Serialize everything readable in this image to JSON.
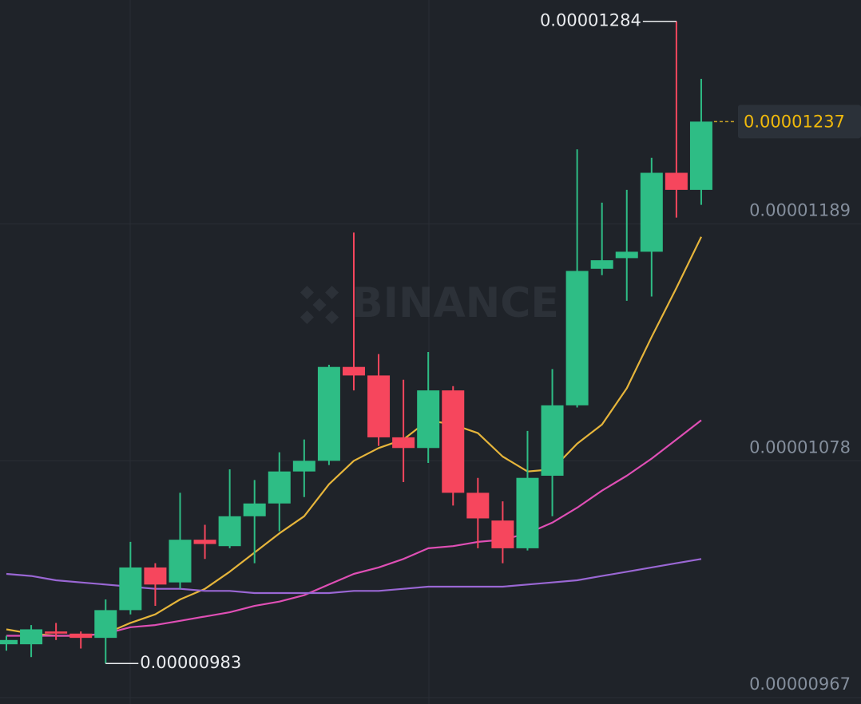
{
  "chart_data": {
    "type": "candlestick",
    "watermark": "BINANCE",
    "ylim": [
      9.64e-06,
      1.294e-05
    ],
    "yticks": [
      9.67e-06,
      1.078e-05,
      1.189e-05
    ],
    "grid": true,
    "up_color": "#2ebd85",
    "down_color": "#f6465d",
    "open": [
      9.92e-06,
      9.92e-06,
      9.98e-06,
      9.97e-06,
      9.95e-06,
      1.008e-05,
      1.028e-05,
      1.021e-05,
      1.041e-05,
      1.038e-05,
      1.052e-05,
      1.058e-05,
      1.073e-05,
      1.078e-05,
      1.122e-05,
      1.118e-05,
      1.089e-05,
      1.084e-05,
      1.111e-05,
      1.063e-05,
      1.05e-05,
      1.037e-05,
      1.071e-05,
      1.104e-05,
      1.168e-05,
      1.173e-05,
      1.176e-05,
      1.213e-05,
      1.205e-05
    ],
    "high": [
      9.96e-06,
      1.001e-05,
      1.002e-05,
      9.98e-06,
      1.013e-05,
      1.04e-05,
      1.03e-05,
      1.063e-05,
      1.048e-05,
      1.074e-05,
      1.069e-05,
      1.082e-05,
      1.088e-05,
      1.123e-05,
      1.185e-05,
      1.128e-05,
      1.116e-05,
      1.129e-05,
      1.113e-05,
      1.07e-05,
      1.059e-05,
      1.092e-05,
      1.121e-05,
      1.224e-05,
      1.199e-05,
      1.205e-05,
      1.22e-05,
      1.284e-05,
      1.257e-05
    ],
    "low": [
      9.89e-06,
      9.86e-06,
      9.94e-06,
      9.9e-06,
      9.83e-06,
      1.006e-05,
      1.01e-05,
      1.018e-05,
      1.032e-05,
      1.037e-05,
      1.03e-05,
      1.045e-05,
      1.061e-05,
      1.076e-05,
      1.111e-05,
      1.085e-05,
      1.068e-05,
      1.077e-05,
      1.057e-05,
      1.037e-05,
      1.03e-05,
      1.036e-05,
      1.052e-05,
      1.103e-05,
      1.165e-05,
      1.153e-05,
      1.155e-05,
      1.192e-05,
      1.198e-05
    ],
    "close": [
      9.94e-06,
      9.99e-06,
      9.97e-06,
      9.95e-06,
      1.008e-05,
      1.028e-05,
      1.02e-05,
      1.041e-05,
      1.039e-05,
      1.052e-05,
      1.058e-05,
      1.073e-05,
      1.078e-05,
      1.122e-05,
      1.118e-05,
      1.089e-05,
      1.084e-05,
      1.111e-05,
      1.063e-05,
      1.051e-05,
      1.037e-05,
      1.07e-05,
      1.104e-05,
      1.167e-05,
      1.172e-05,
      1.176e-05,
      1.213e-05,
      1.205e-05,
      1.237e-05
    ],
    "lines": [
      {
        "color": "#e6b53b",
        "values": [
          9.99e-06,
          9.97e-06,
          9.96e-06,
          9.96e-06,
          9.97e-06,
          1.002e-05,
          1.006e-05,
          1.013e-05,
          1.018e-05,
          1.026e-05,
          1.035e-05,
          1.044e-05,
          1.052e-05,
          1.067e-05,
          1.078e-05,
          1.084e-05,
          1.088e-05,
          1.097e-05,
          1.095e-05,
          1.091e-05,
          1.08e-05,
          1.073e-05,
          1.074e-05,
          1.086e-05,
          1.095e-05,
          1.112e-05,
          1.136e-05,
          1.159e-05,
          1.183e-05
        ]
      },
      {
        "color": "#df4fb5",
        "values": [
          9.96e-06,
          9.96e-06,
          9.96e-06,
          9.96e-06,
          9.97e-06,
          1e-05,
          1.001e-05,
          1.003e-05,
          1.005e-05,
          1.007e-05,
          1.01e-05,
          1.012e-05,
          1.015e-05,
          1.02e-05,
          1.025e-05,
          1.028e-05,
          1.032e-05,
          1.037e-05,
          1.038e-05,
          1.04e-05,
          1.041e-05,
          1.044e-05,
          1.049e-05,
          1.056e-05,
          1.064e-05,
          1.071e-05,
          1.079e-05,
          1.088e-05,
          1.097e-05
        ]
      },
      {
        "color": "#9a67d4",
        "values": [
          1.025e-05,
          1.024e-05,
          1.022e-05,
          1.021e-05,
          1.02e-05,
          1.019e-05,
          1.018e-05,
          1.018e-05,
          1.017e-05,
          1.017e-05,
          1.016e-05,
          1.016e-05,
          1.016e-05,
          1.016e-05,
          1.017e-05,
          1.017e-05,
          1.018e-05,
          1.019e-05,
          1.019e-05,
          1.019e-05,
          1.019e-05,
          1.02e-05,
          1.021e-05,
          1.022e-05,
          1.024e-05,
          1.026e-05,
          1.028e-05,
          1.03e-05,
          1.032e-05
        ]
      }
    ]
  }
}
